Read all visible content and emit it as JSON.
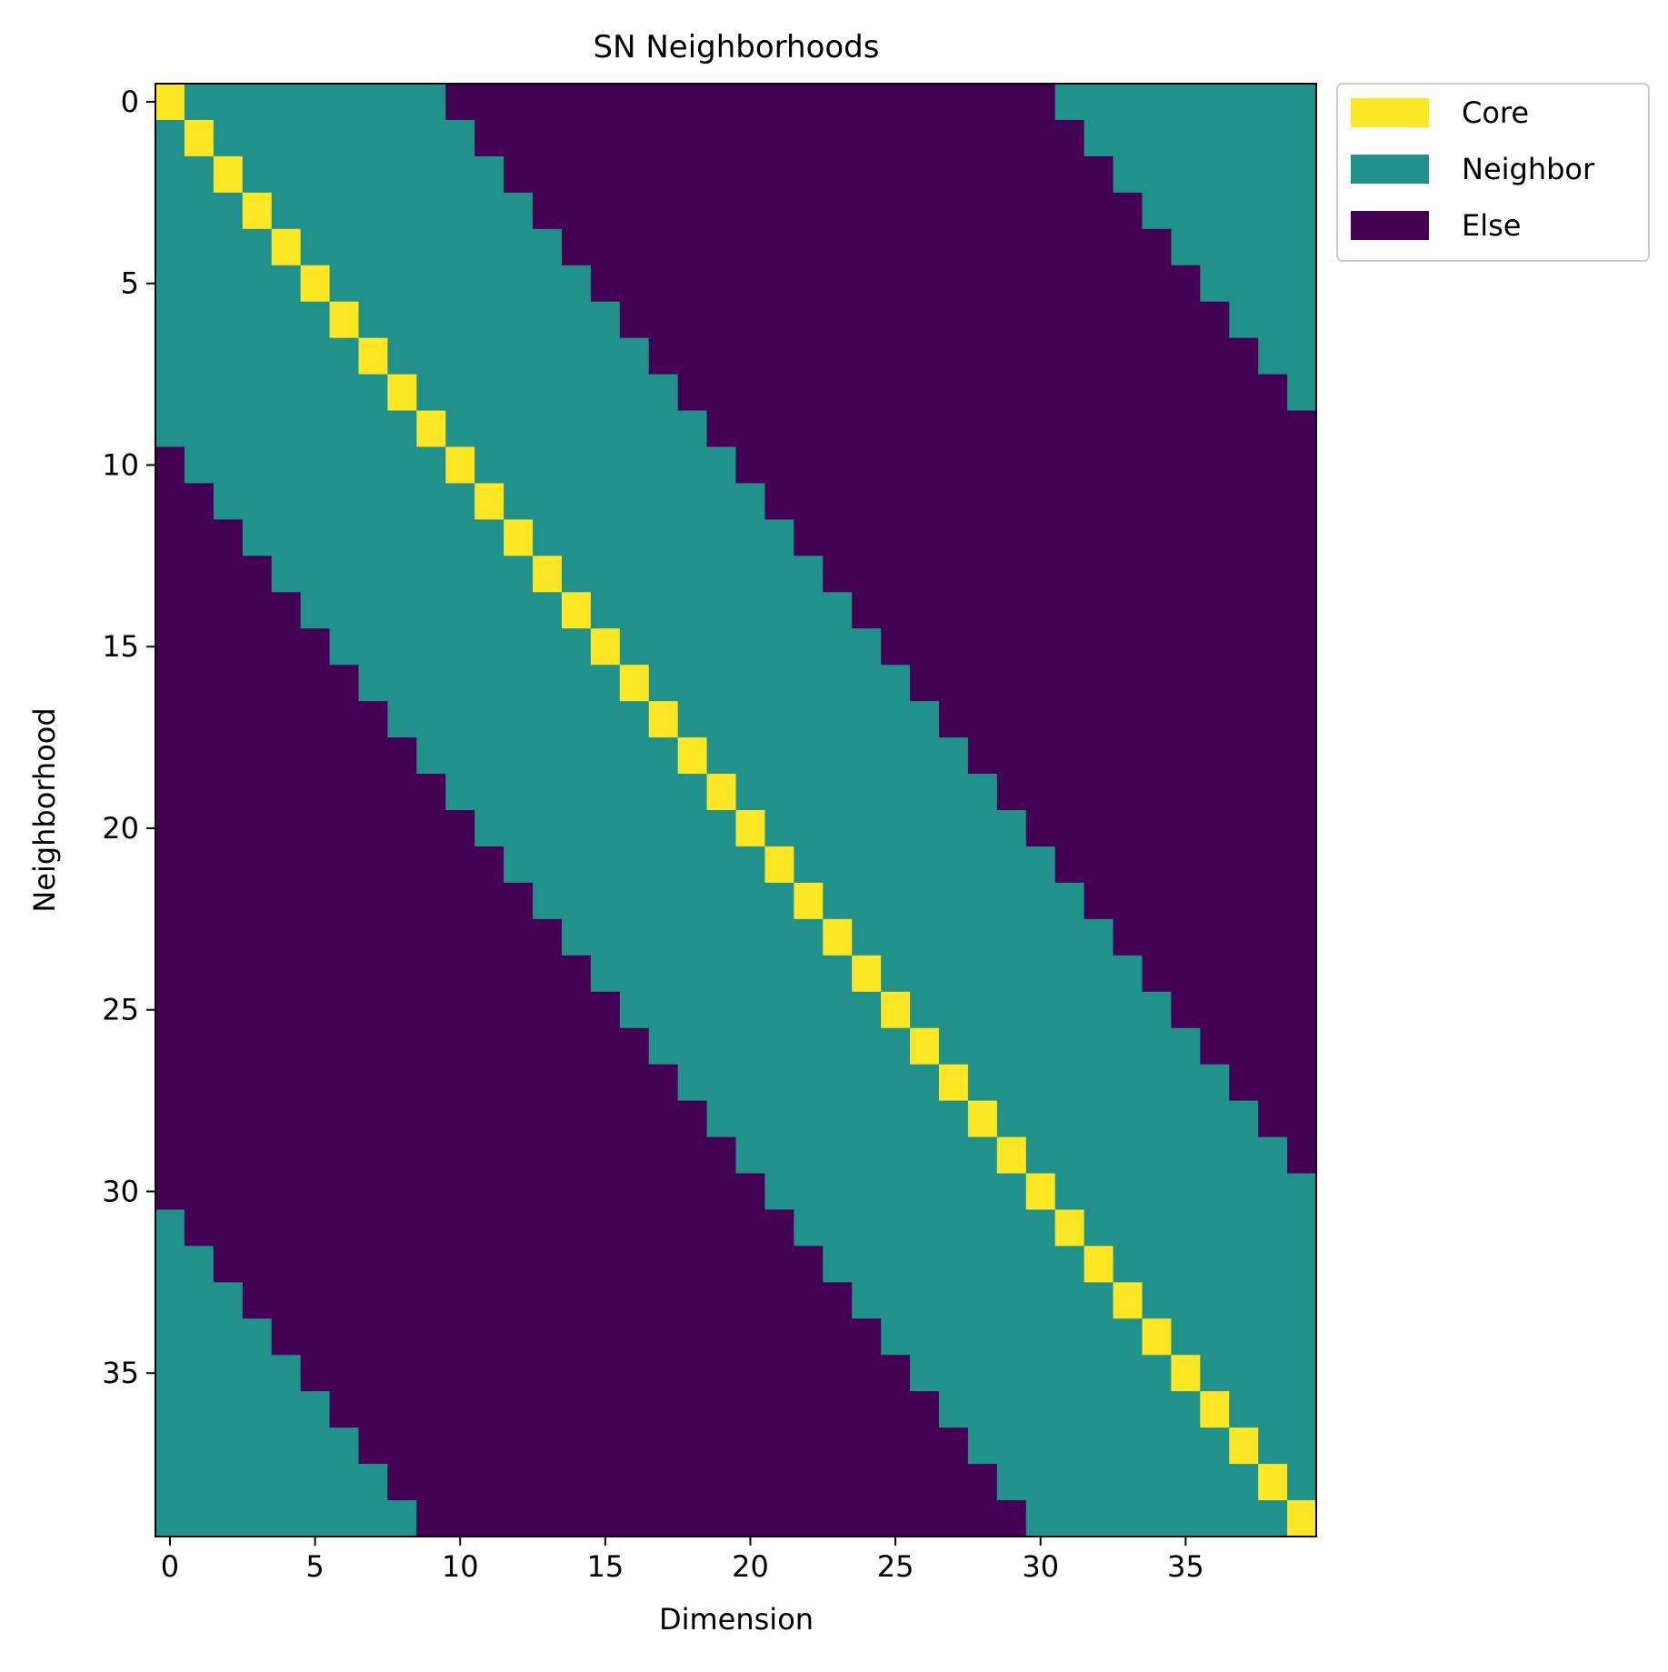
{
  "chart_data": {
    "type": "heatmap",
    "title": "SN Neighborhoods",
    "xlabel": "Dimension",
    "ylabel": "Neighborhood",
    "n_rows": 40,
    "n_cols": 40,
    "x_ticks": [
      0,
      5,
      10,
      15,
      20,
      25,
      30,
      35
    ],
    "y_ticks": [
      0,
      5,
      10,
      15,
      20,
      25,
      30,
      35
    ],
    "neighborhood_radius": 9,
    "wraparound": true,
    "cell_rule": "category = Core if column == row; Neighbor if circular distance between row and column <= 9; otherwise Else",
    "categories": [
      {
        "name": "Core",
        "color": "#fde725"
      },
      {
        "name": "Neighbor",
        "color": "#21918c"
      },
      {
        "name": "Else",
        "color": "#440154"
      }
    ],
    "legend_position": "outside upper right",
    "grid": false
  }
}
